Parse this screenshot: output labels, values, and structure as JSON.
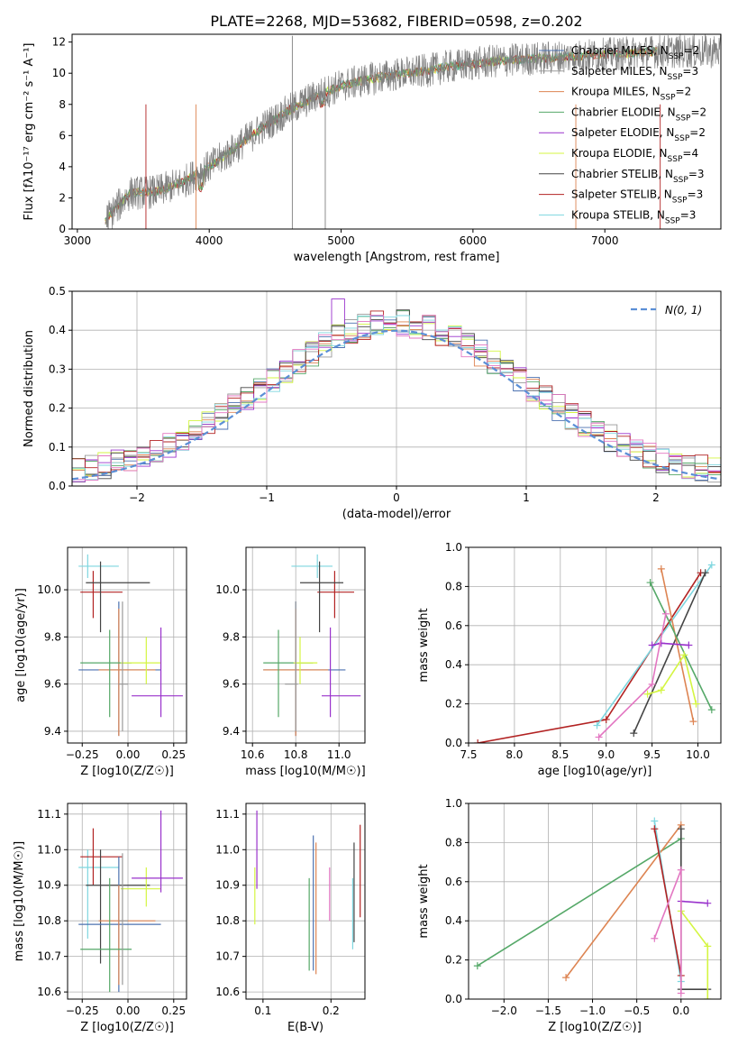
{
  "title": "PLATE=2268, MJD=53682, FIBERID=0598, z=0.202",
  "colors": {
    "Chabrier MILES": "#4c72b0",
    "Salpeter MILES": "#999999",
    "Kroupa MILES": "#dd8452",
    "Chabrier ELODIE": "#55a868",
    "Salpeter ELODIE": "#9932cc",
    "Kroupa ELODIE": "#d4f542",
    "Chabrier STELIB": "#444444",
    "Salpeter STELIB": "#b22222",
    "Kroupa STELIB": "#7ed6df",
    "Pink": "#e377c2",
    "Normal": "#5b8fd6"
  },
  "legend": [
    {
      "model": "Chabrier MILES",
      "n": "2"
    },
    {
      "model": "Salpeter MILES",
      "n": "3"
    },
    {
      "model": "Kroupa MILES",
      "n": "2"
    },
    {
      "model": "Chabrier ELODIE",
      "n": "2"
    },
    {
      "model": "Salpeter ELODIE",
      "n": "2"
    },
    {
      "model": "Kroupa ELODIE",
      "n": "4"
    },
    {
      "model": "Chabrier STELIB",
      "n": "3"
    },
    {
      "model": "Salpeter STELIB",
      "n": "3"
    },
    {
      "model": "Kroupa STELIB",
      "n": "3"
    }
  ],
  "chart_data": [
    {
      "type": "line",
      "id": "spectrum",
      "xlabel": "wavelength [Angstrom, rest frame]",
      "ylabel": "Flux [fλ10⁻¹⁷ erg cm⁻² s⁻¹ A⁻¹]",
      "xlim": [
        2960,
        7880
      ],
      "ylim": [
        0,
        12.5
      ],
      "xticks": [
        3000,
        4000,
        5000,
        6000,
        7000
      ],
      "yticks": [
        0,
        2,
        4,
        6,
        8,
        10,
        12
      ],
      "x": [
        3200,
        3400,
        3600,
        3800,
        4000,
        4200,
        4400,
        4600,
        4800,
        5000,
        5200,
        5400,
        5600,
        5800,
        6000,
        6200,
        6400,
        6600,
        6800,
        7000,
        7200,
        7400
      ],
      "y": [
        0.5,
        2.3,
        2.4,
        3.0,
        4.0,
        5.2,
        6.5,
        7.6,
        8.5,
        9.2,
        9.6,
        9.9,
        10.1,
        10.4,
        10.6,
        10.8,
        10.9,
        11.0,
        11.1,
        11.2,
        11.3,
        11.4
      ]
    },
    {
      "type": "line",
      "id": "residuals",
      "xlabel": "(data-model)/error",
      "ylabel": "Normed distribution",
      "xlim": [
        -2.5,
        2.5
      ],
      "ylim": [
        0,
        0.5
      ],
      "xticks": [
        -2,
        -1,
        0,
        1,
        2
      ],
      "yticks": [
        0.0,
        0.1,
        0.2,
        0.3,
        0.4,
        0.5
      ],
      "legend": "N(0, 1)"
    },
    {
      "type": "scatter",
      "id": "age-vs-Z",
      "xlabel": "Z [log10(Z/Z☉)]",
      "ylabel": "age [log10(age/yr)]",
      "xlim": [
        -0.33,
        0.32
      ],
      "ylim": [
        9.35,
        10.18
      ],
      "xticks": [
        -0.25,
        0.0,
        0.25
      ],
      "yticks": [
        9.4,
        9.6,
        9.8,
        10.0
      ]
    },
    {
      "type": "scatter",
      "id": "age-vs-mass",
      "xlabel": "mass [log10(M/M☉)]",
      "ylabel": "",
      "xlim": [
        10.57,
        11.12
      ],
      "ylim": [
        9.35,
        10.18
      ],
      "xticks": [
        10.6,
        10.8,
        11.0
      ],
      "yticks": [
        9.4,
        9.6,
        9.8,
        10.0
      ]
    },
    {
      "type": "line",
      "id": "weight-vs-age",
      "xlabel": "age [log10(age/yr)]",
      "ylabel": "mass weight",
      "xlim": [
        7.5,
        10.25
      ],
      "ylim": [
        0,
        1.0
      ],
      "xticks": [
        7.5,
        8.0,
        8.5,
        9.0,
        9.5,
        10.0
      ],
      "yticks": [
        0.0,
        0.2,
        0.4,
        0.6,
        0.8,
        1.0
      ]
    },
    {
      "type": "scatter",
      "id": "mass-vs-Z",
      "xlabel": "Z [log10(Z/Z☉)]",
      "ylabel": "mass [log10(M/M☉)]",
      "xlim": [
        -0.33,
        0.32
      ],
      "ylim": [
        10.58,
        11.13
      ],
      "xticks": [
        -0.25,
        0.0,
        0.25
      ],
      "yticks": [
        10.6,
        10.7,
        10.8,
        10.9,
        11.0,
        11.1
      ]
    },
    {
      "type": "scatter",
      "id": "mass-vs-EBV",
      "xlabel": "E(B-V)",
      "ylabel": "",
      "xlim": [
        0.075,
        0.25
      ],
      "ylim": [
        10.58,
        11.13
      ],
      "xticks": [
        0.1,
        0.2
      ],
      "yticks": [
        10.6,
        10.7,
        10.8,
        10.9,
        11.0,
        11.1
      ]
    },
    {
      "type": "line",
      "id": "weight-vs-Z",
      "xlabel": "Z [log10(Z/Z☉)]",
      "ylabel": "mass weight",
      "xlim": [
        -2.4,
        0.45
      ],
      "ylim": [
        0,
        1.0
      ],
      "xticks": [
        -2.0,
        -1.5,
        -1.0,
        -0.5,
        0.0
      ],
      "yticks": [
        0.0,
        0.2,
        0.4,
        0.6,
        0.8,
        1.0
      ]
    }
  ]
}
